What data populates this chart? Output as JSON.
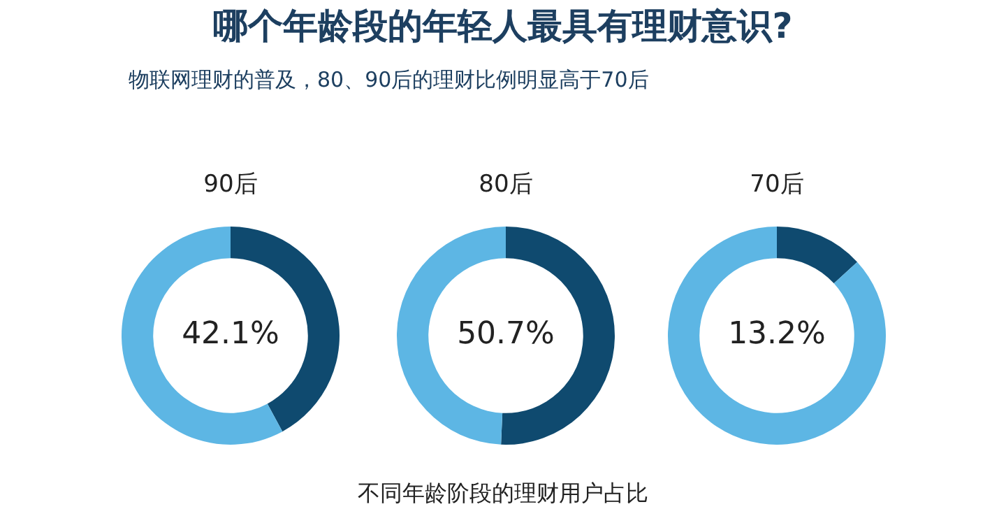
{
  "chart_data": [
    {
      "type": "other",
      "title": "哪个年龄段的年轻人最具有理财意识?",
      "subtitle": "物联网理财的普及，80、90后的理财比例明显高于70后",
      "annotations": [
        "不同年龄阶段的理财用户占比"
      ]
    },
    {
      "type": "donut",
      "title": "90后",
      "categories": [
        null,
        null
      ],
      "values": [
        42.1,
        57.9
      ],
      "colors": [
        "#0f4a6f",
        "#5db6e4"
      ],
      "value_labels": [
        "42.1%",
        null
      ]
    },
    {
      "type": "donut",
      "title": "80后",
      "categories": [
        null,
        null
      ],
      "values": [
        50.7,
        49.3
      ],
      "colors": [
        "#0f4a6f",
        "#5db6e4"
      ],
      "value_labels": [
        "50.7%",
        null
      ]
    },
    {
      "type": "donut",
      "title": "70后",
      "categories": [
        null,
        null
      ],
      "values": [
        13.2,
        86.8
      ],
      "colors": [
        "#0f4a6f",
        "#5db6e4"
      ],
      "value_labels": [
        "13.2%",
        null
      ]
    }
  ]
}
